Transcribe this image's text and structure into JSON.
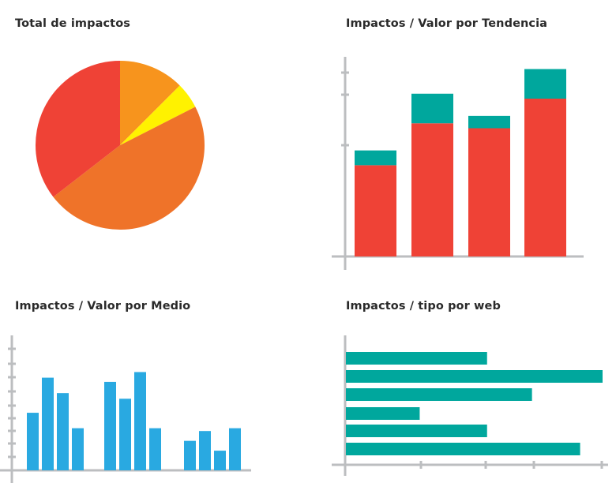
{
  "titles": {
    "pie": "Total de impactos",
    "trend": "Impactos / Valor por Tendencia",
    "medio": "Impactos / Valor por Medio",
    "web": "Impactos / tipo por web"
  },
  "colors": {
    "red": "#ef4236",
    "orange": "#ef7329",
    "amber": "#f7941d",
    "yellow": "#fff200",
    "teal": "#00a79d",
    "blue": "#29a9e1",
    "axis": "#bcbec0"
  },
  "chart_data": [
    {
      "type": "pie",
      "title": "Total de impactos",
      "slices": [
        {
          "value": 12.5,
          "color": "#f7941d"
        },
        {
          "value": 5.0,
          "color": "#fff200"
        },
        {
          "value": 47.0,
          "color": "#ef7329"
        },
        {
          "value": 35.5,
          "color": "#ef4236"
        }
      ]
    },
    {
      "type": "bar",
      "stacked": true,
      "title": "Impactos / Valor por Tendencia",
      "ylim": [
        0,
        4
      ],
      "series": [
        {
          "values": [
            1.85,
            2.7,
            2.6,
            3.2
          ],
          "color": "#ef4236"
        },
        {
          "values": [
            0.3,
            0.6,
            0.25,
            0.6
          ],
          "color": "#00a79d"
        }
      ]
    },
    {
      "type": "bar",
      "title": "Impactos / Valor por Medio",
      "ylim": [
        0,
        9.5
      ],
      "groups": [
        [
          4.1,
          6.6,
          5.5,
          3.0
        ],
        [
          6.3,
          5.1,
          7.0,
          3.0
        ],
        [
          2.1,
          2.8,
          1.4,
          3.0
        ]
      ],
      "color": "#29a9e1"
    },
    {
      "type": "bar",
      "orientation": "horizontal",
      "title": "Impactos / tipo por web",
      "xlim": [
        0,
        4
      ],
      "values": [
        2.2,
        4.0,
        2.9,
        1.15,
        2.2,
        3.65
      ],
      "color": "#00a79d"
    }
  ]
}
